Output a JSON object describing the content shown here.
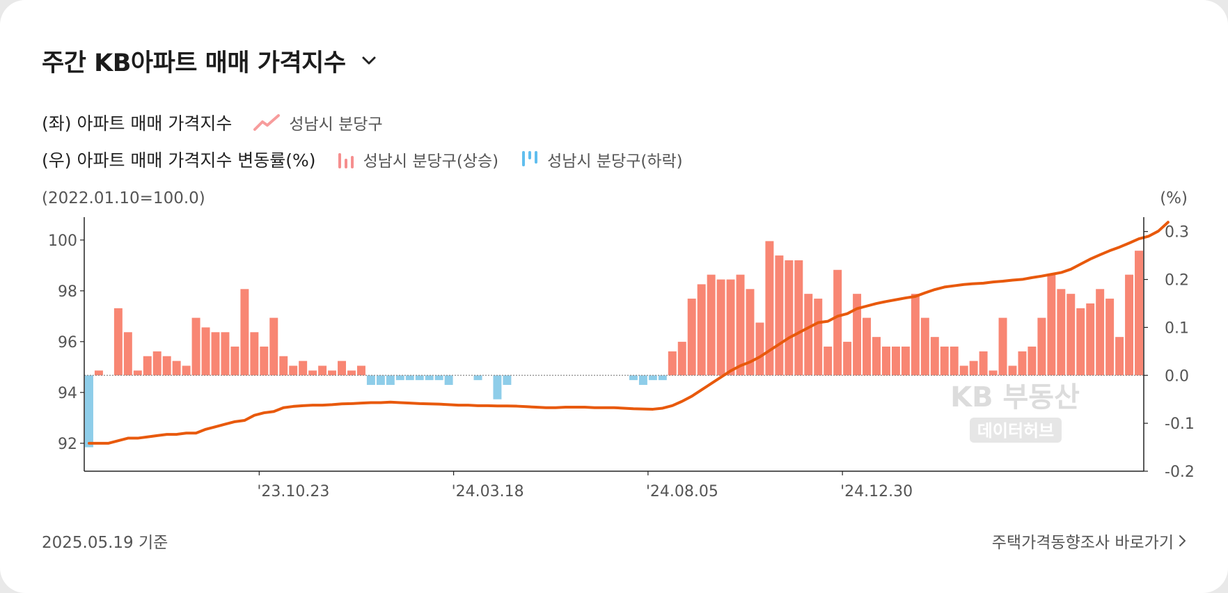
{
  "header": {
    "title": "주간 KB아파트 매매 가격지수"
  },
  "legend": {
    "row1_label": "(좌) 아파트 매매 가격지수",
    "row1_item": "성남시 분당구",
    "row2_label": "(우) 아파트 매매 가격지수 변동률(%)",
    "row2_up": "성남시 분당구(상승)",
    "row2_down": "성남시 분당구(하락)"
  },
  "axis_captions": {
    "left": "(2022.01.10=100.0)",
    "right": "(%)"
  },
  "watermark": {
    "line1": "KB 부동산",
    "line2": "데이터허브"
  },
  "footer": {
    "date": "2025.05.19 기준",
    "link": "주택가격동향조사 바로가기"
  },
  "colors": {
    "line": "#e8590c",
    "up": "#f88673",
    "down": "#8ecde9",
    "axis": "#222222"
  },
  "chart_data": {
    "type": "bar+line",
    "left_axis": {
      "ticks": [
        92,
        94,
        96,
        98,
        100
      ],
      "ylim": [
        90.9,
        100.9
      ]
    },
    "right_axis": {
      "ticks": [
        "0.3",
        "0.2",
        "0.1",
        "0.0",
        "-0.1",
        "-0.2"
      ],
      "ylim": [
        -0.2,
        0.33
      ]
    },
    "x_tick_labels": [
      "'23.10.23",
      "'24.03.18",
      "'24.08.05",
      "'24.12.30"
    ],
    "x_tick_positions": [
      18,
      38,
      58,
      78
    ],
    "series": [
      {
        "name": "성남시 분당구",
        "kind": "line",
        "axis": "left",
        "values": [
          92.0,
          92.0,
          92.0,
          92.1,
          92.2,
          92.2,
          92.25,
          92.3,
          92.35,
          92.35,
          92.4,
          92.4,
          92.55,
          92.65,
          92.75,
          92.85,
          92.9,
          93.1,
          93.2,
          93.25,
          93.4,
          93.45,
          93.48,
          93.5,
          93.5,
          93.52,
          93.55,
          93.56,
          93.58,
          93.6,
          93.6,
          93.62,
          93.6,
          93.58,
          93.56,
          93.55,
          93.54,
          93.52,
          93.5,
          93.5,
          93.48,
          93.48,
          93.47,
          93.47,
          93.46,
          93.44,
          93.42,
          93.4,
          93.4,
          93.42,
          93.42,
          93.42,
          93.4,
          93.4,
          93.4,
          93.38,
          93.36,
          93.35,
          93.34,
          93.38,
          93.48,
          93.65,
          93.85,
          94.1,
          94.35,
          94.6,
          94.85,
          95.05,
          95.2,
          95.4,
          95.65,
          95.9,
          96.15,
          96.35,
          96.55,
          96.75,
          96.8,
          97.0,
          97.1,
          97.3,
          97.4,
          97.5,
          97.58,
          97.65,
          97.72,
          97.78,
          97.92,
          98.05,
          98.15,
          98.2,
          98.25,
          98.28,
          98.3,
          98.35,
          98.38,
          98.42,
          98.45,
          98.52,
          98.58,
          98.65,
          98.72,
          98.85,
          99.05,
          99.25,
          99.42,
          99.58,
          99.72,
          99.88,
          100.05,
          100.15,
          100.35,
          100.7
        ]
      },
      {
        "name": "성남시 분당구(변동률)",
        "kind": "bar",
        "axis": "right",
        "values": [
          -0.15,
          0.01,
          0.0,
          0.14,
          0.09,
          0.01,
          0.04,
          0.05,
          0.04,
          0.03,
          0.02,
          0.12,
          0.1,
          0.09,
          0.09,
          0.06,
          0.18,
          0.09,
          0.06,
          0.12,
          0.04,
          0.02,
          0.03,
          0.01,
          0.02,
          0.01,
          0.03,
          0.01,
          0.02,
          -0.02,
          -0.02,
          -0.02,
          -0.01,
          -0.01,
          -0.01,
          -0.01,
          -0.01,
          -0.02,
          0.0,
          0.0,
          -0.01,
          0.0,
          -0.05,
          -0.02,
          0.0,
          0.0,
          0.0,
          0.0,
          0.0,
          0.0,
          0.0,
          0.0,
          0.0,
          0.0,
          0.0,
          0.0,
          -0.01,
          -0.02,
          -0.01,
          -0.01,
          0.05,
          0.07,
          0.16,
          0.19,
          0.21,
          0.2,
          0.2,
          0.21,
          0.18,
          0.11,
          0.28,
          0.25,
          0.24,
          0.24,
          0.17,
          0.16,
          0.06,
          0.22,
          0.07,
          0.17,
          0.12,
          0.08,
          0.06,
          0.06,
          0.06,
          0.17,
          0.12,
          0.08,
          0.06,
          0.06,
          0.02,
          0.03,
          0.05,
          0.01,
          0.12,
          0.02,
          0.05,
          0.06,
          0.12,
          0.21,
          0.18,
          0.17,
          0.14,
          0.15,
          0.18,
          0.16,
          0.08,
          0.21,
          0.26
        ]
      }
    ]
  }
}
